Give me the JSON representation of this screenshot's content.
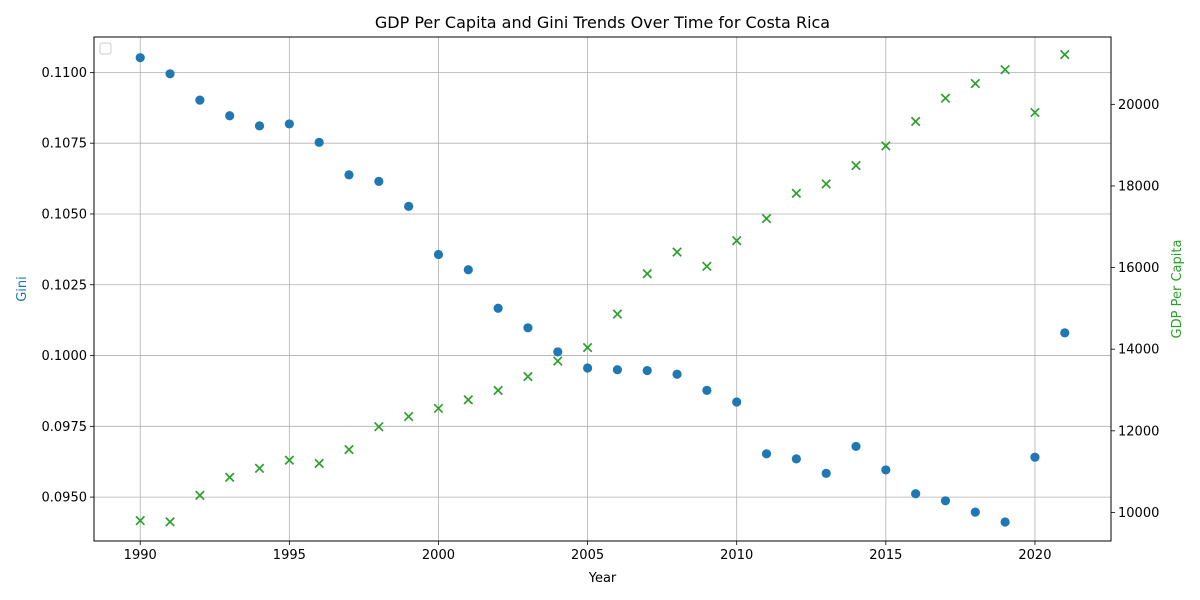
{
  "chart_data": {
    "type": "scatter",
    "title": "GDP Per Capita and Gini Trends Over Time for Costa Rica",
    "xlabel": "Year",
    "ylabel_left": "Gini",
    "ylabel_right": "GDP Per Capita",
    "xlim": [
      1988.45,
      2022.55
    ],
    "ylim_left": [
      0.09345,
      0.11125
    ],
    "ylim_right": [
      9300,
      21650
    ],
    "x_ticks": [
      1990,
      1995,
      2000,
      2005,
      2010,
      2015,
      2020
    ],
    "y_ticks_left": [
      "0.0950",
      "0.0975",
      "0.1000",
      "0.1025",
      "0.1050",
      "0.1075",
      "0.1100"
    ],
    "y_ticks_right": [
      "10000",
      "12000",
      "14000",
      "16000",
      "18000",
      "20000"
    ],
    "grid": true,
    "legend": "upper-left (empty)",
    "colors": {
      "gini": "#1f77b4",
      "gdp": "#2ca02c"
    },
    "x": [
      1990,
      1991,
      1992,
      1993,
      1994,
      1995,
      1996,
      1997,
      1998,
      1999,
      2000,
      2001,
      2002,
      2003,
      2004,
      2005,
      2006,
      2007,
      2008,
      2009,
      2010,
      2011,
      2012,
      2013,
      2014,
      2015,
      2016,
      2017,
      2018,
      2019,
      2020,
      2021
    ],
    "series": [
      {
        "axis": "left",
        "marker": "circle",
        "values": [
          0.11052,
          0.10995,
          0.10902,
          0.10847,
          0.10811,
          0.10818,
          0.10753,
          0.10638,
          0.10615,
          0.10527,
          0.10357,
          0.10303,
          0.10167,
          0.10098,
          0.10013,
          0.09956,
          0.0995,
          0.09947,
          0.09934,
          0.09877,
          0.09836,
          0.09653,
          0.09635,
          0.09584,
          0.09679,
          0.09596,
          0.09512,
          0.09487,
          0.09447,
          0.09412,
          0.09641,
          0.1008
        ]
      },
      {
        "axis": "right",
        "marker": "x",
        "values": [
          9800,
          9770,
          10420,
          10860,
          11080,
          11280,
          11200,
          11540,
          12100,
          12350,
          12550,
          12760,
          12990,
          13330,
          13710,
          14040,
          14860,
          15850,
          16380,
          16030,
          16660,
          17200,
          17820,
          18050,
          18500,
          18980,
          19580,
          20150,
          20510,
          20850,
          19800,
          21220
        ]
      }
    ]
  }
}
